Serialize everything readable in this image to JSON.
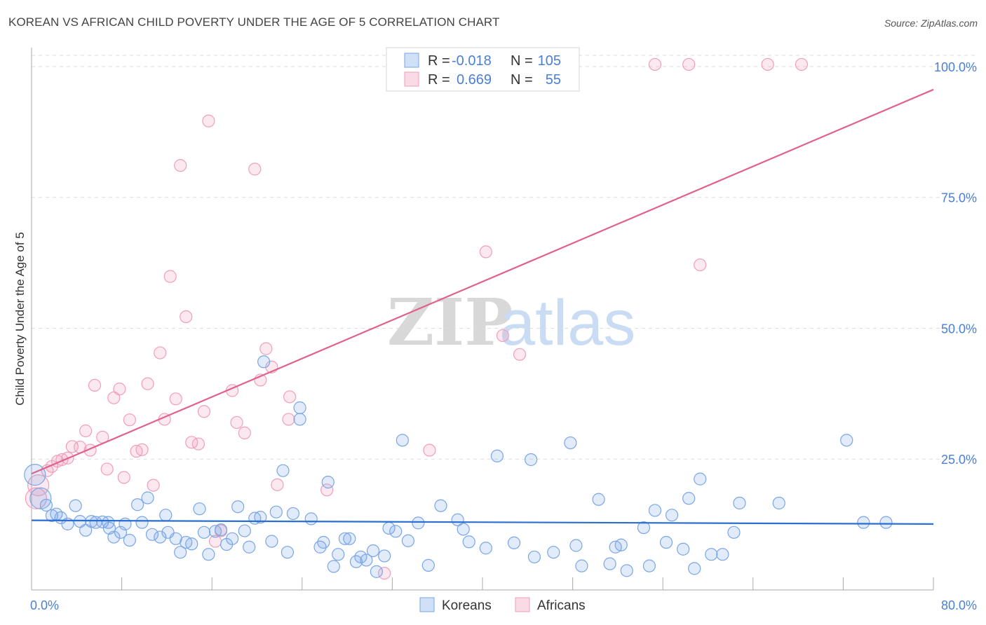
{
  "title": "KOREAN VS AFRICAN CHILD POVERTY UNDER THE AGE OF 5 CORRELATION CHART",
  "source": "Source: ZipAtlas.com",
  "watermark": {
    "zip": "ZIP",
    "atlas": "atlas"
  },
  "colors": {
    "korean_fill": "rgba(120,166,230,0.22)",
    "korean_stroke": "#7aa6e6",
    "korean_line": "#2a6fd0",
    "african_fill": "rgba(240,150,180,0.22)",
    "african_stroke": "#ef9fbb",
    "african_line": "#e0608e",
    "tick_label": "#4a7fd6",
    "grid": "#dddddd"
  },
  "legend": {
    "rows": [
      {
        "r_label": "R =",
        "r_value": "-0.018",
        "n_label": "N =",
        "n_value": "105"
      },
      {
        "r_label": "R =",
        "r_value": "0.669",
        "n_label": "N =",
        "n_value": "55"
      }
    ],
    "bottom": [
      "Koreans",
      "Africans"
    ]
  },
  "chart_data": {
    "type": "scatter",
    "title": "KOREAN VS AFRICAN CHILD POVERTY UNDER THE AGE OF 5 CORRELATION CHART",
    "xlabel": "",
    "ylabel": "Child Poverty Under the Age of 5",
    "xlim": [
      0,
      80
    ],
    "ylim": [
      0,
      102
    ],
    "x_tick_labels": [
      "0.0%",
      "80.0%"
    ],
    "y_ticks": [
      25,
      50,
      75,
      100
    ],
    "y_tick_labels": [
      "25.0%",
      "50.0%",
      "75.0%",
      "100.0%"
    ],
    "grid": "horizontal dashed",
    "legend_position": "top-center and bottom-center",
    "series": [
      {
        "name": "Koreans",
        "trend": {
          "x": [
            0,
            80
          ],
          "y": [
            13.3,
            12.6
          ]
        },
        "points": [
          [
            0.3,
            22.0
          ],
          [
            0.8,
            17.5
          ],
          [
            1.3,
            16.2
          ],
          [
            1.8,
            14.2
          ],
          [
            2.2,
            14.5
          ],
          [
            2.6,
            13.8
          ],
          [
            3.2,
            12.6
          ],
          [
            3.9,
            16.1
          ],
          [
            4.3,
            13.1
          ],
          [
            4.8,
            11.4
          ],
          [
            5.3,
            13.1
          ],
          [
            5.7,
            12.9
          ],
          [
            6.3,
            13.0
          ],
          [
            6.8,
            12.9
          ],
          [
            6.9,
            11.8
          ],
          [
            7.3,
            10.1
          ],
          [
            7.9,
            11.0
          ],
          [
            8.3,
            12.6
          ],
          [
            8.7,
            9.5
          ],
          [
            9.4,
            16.3
          ],
          [
            9.8,
            12.9
          ],
          [
            10.3,
            17.6
          ],
          [
            10.7,
            10.6
          ],
          [
            11.4,
            10.1
          ],
          [
            11.9,
            14.3
          ],
          [
            12.1,
            11.0
          ],
          [
            12.8,
            9.8
          ],
          [
            13.2,
            7.2
          ],
          [
            13.7,
            9.1
          ],
          [
            14.2,
            8.8
          ],
          [
            14.9,
            15.5
          ],
          [
            15.3,
            11.0
          ],
          [
            15.7,
            6.8
          ],
          [
            16.3,
            11.2
          ],
          [
            16.8,
            11.5
          ],
          [
            17.3,
            8.7
          ],
          [
            17.8,
            9.8
          ],
          [
            18.3,
            15.9
          ],
          [
            18.9,
            11.3
          ],
          [
            19.3,
            8.2
          ],
          [
            19.8,
            13.7
          ],
          [
            20.3,
            13.9
          ],
          [
            20.6,
            43.6
          ],
          [
            21.3,
            9.3
          ],
          [
            21.7,
            14.9
          ],
          [
            22.3,
            22.8
          ],
          [
            22.7,
            7.2
          ],
          [
            23.2,
            14.6
          ],
          [
            23.8,
            34.8
          ],
          [
            23.8,
            32.6
          ],
          [
            24.8,
            13.6
          ],
          [
            25.6,
            8.2
          ],
          [
            25.9,
            9.1
          ],
          [
            26.3,
            20.6
          ],
          [
            26.8,
            4.5
          ],
          [
            27.2,
            6.8
          ],
          [
            27.8,
            9.8
          ],
          [
            28.2,
            9.8
          ],
          [
            28.8,
            5.4
          ],
          [
            29.2,
            6.3
          ],
          [
            29.7,
            5.7
          ],
          [
            30.3,
            7.5
          ],
          [
            30.6,
            3.5
          ],
          [
            31.3,
            6.5
          ],
          [
            31.7,
            11.8
          ],
          [
            32.3,
            11.2
          ],
          [
            32.9,
            28.6
          ],
          [
            33.4,
            9.4
          ],
          [
            34.3,
            12.8
          ],
          [
            35.2,
            4.7
          ],
          [
            36.3,
            16.1
          ],
          [
            37.8,
            13.4
          ],
          [
            38.3,
            11.6
          ],
          [
            38.8,
            9.2
          ],
          [
            40.3,
            8.0
          ],
          [
            41.3,
            25.6
          ],
          [
            42.8,
            9.0
          ],
          [
            44.3,
            24.9
          ],
          [
            44.6,
            6.3
          ],
          [
            46.3,
            7.2
          ],
          [
            47.8,
            28.1
          ],
          [
            48.3,
            8.5
          ],
          [
            48.8,
            4.6
          ],
          [
            50.3,
            17.3
          ],
          [
            51.3,
            5.0
          ],
          [
            51.8,
            8.2
          ],
          [
            52.3,
            8.6
          ],
          [
            52.8,
            3.7
          ],
          [
            54.3,
            11.9
          ],
          [
            54.8,
            4.6
          ],
          [
            55.3,
            15.2
          ],
          [
            56.3,
            9.1
          ],
          [
            56.8,
            14.3
          ],
          [
            57.8,
            7.8
          ],
          [
            58.3,
            17.5
          ],
          [
            58.8,
            4.1
          ],
          [
            59.3,
            21.2
          ],
          [
            60.3,
            6.8
          ],
          [
            61.3,
            6.8
          ],
          [
            62.3,
            11.0
          ],
          [
            62.8,
            16.6
          ],
          [
            66.3,
            16.6
          ],
          [
            72.3,
            28.6
          ],
          [
            73.8,
            12.9
          ],
          [
            75.8,
            12.9
          ]
        ]
      },
      {
        "name": "Africans",
        "trend": {
          "x": [
            0,
            80
          ],
          "y": [
            22.2,
            95.6
          ]
        },
        "points": [
          [
            0.4,
            17.5
          ],
          [
            0.6,
            20.0
          ],
          [
            1.4,
            22.8
          ],
          [
            1.8,
            23.6
          ],
          [
            2.3,
            24.6
          ],
          [
            2.7,
            24.9
          ],
          [
            3.2,
            25.2
          ],
          [
            3.6,
            27.4
          ],
          [
            4.3,
            27.3
          ],
          [
            4.8,
            30.4
          ],
          [
            5.2,
            26.7
          ],
          [
            5.6,
            39.1
          ],
          [
            6.3,
            29.2
          ],
          [
            6.7,
            23.1
          ],
          [
            7.3,
            36.7
          ],
          [
            7.8,
            38.4
          ],
          [
            8.2,
            21.5
          ],
          [
            8.7,
            32.5
          ],
          [
            9.3,
            26.5
          ],
          [
            9.8,
            26.8
          ],
          [
            10.3,
            39.4
          ],
          [
            10.8,
            20.0
          ],
          [
            11.4,
            45.3
          ],
          [
            11.8,
            32.6
          ],
          [
            12.3,
            59.9
          ],
          [
            12.8,
            36.5
          ],
          [
            13.2,
            81.1
          ],
          [
            13.7,
            52.2
          ],
          [
            14.2,
            28.2
          ],
          [
            14.8,
            27.9
          ],
          [
            15.3,
            34.1
          ],
          [
            15.7,
            89.6
          ],
          [
            16.3,
            9.3
          ],
          [
            16.8,
            11.3
          ],
          [
            17.8,
            38.1
          ],
          [
            18.2,
            32.0
          ],
          [
            18.9,
            30.0
          ],
          [
            19.8,
            80.4
          ],
          [
            20.3,
            40.1
          ],
          [
            20.8,
            46.1
          ],
          [
            21.3,
            42.6
          ],
          [
            21.8,
            20.1
          ],
          [
            22.8,
            32.6
          ],
          [
            22.9,
            36.9
          ],
          [
            26.2,
            19.1
          ],
          [
            31.3,
            3.2
          ],
          [
            35.3,
            26.7
          ],
          [
            40.3,
            64.6
          ],
          [
            41.8,
            48.6
          ],
          [
            43.3,
            45.0
          ],
          [
            55.3,
            100.4
          ],
          [
            58.3,
            100.4
          ],
          [
            59.3,
            62.1
          ],
          [
            65.3,
            100.4
          ],
          [
            68.3,
            100.4
          ]
        ]
      }
    ]
  }
}
